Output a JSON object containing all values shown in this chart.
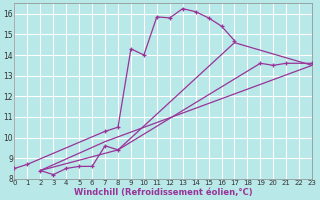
{
  "xlabel": "Windchill (Refroidissement éolien,°C)",
  "bg_color": "#b8e8e8",
  "plot_bg_color": "#b8e8e8",
  "line_color": "#993399",
  "grid_color": "#ffffff",
  "xmin": 0,
  "xmax": 23,
  "ymin": 8,
  "ymax": 16.5,
  "line1_x": [
    0,
    1,
    7,
    8,
    9,
    10,
    11,
    12,
    13,
    14,
    15,
    16,
    17
  ],
  "line1_y": [
    8.5,
    8.7,
    10.3,
    10.5,
    14.3,
    14.0,
    15.85,
    15.8,
    16.25,
    16.1,
    15.8,
    15.4,
    14.7
  ],
  "line2_x": [
    2,
    3,
    4,
    5,
    6,
    7,
    8,
    19,
    20,
    21,
    23
  ],
  "line2_y": [
    8.4,
    8.2,
    8.5,
    8.6,
    8.6,
    9.6,
    9.4,
    13.6,
    13.5,
    13.6,
    13.6
  ],
  "line3_x": [
    2,
    7,
    23
  ],
  "line3_y": [
    8.4,
    9.8,
    13.5
  ],
  "line4_x": [
    2,
    8,
    17,
    23
  ],
  "line4_y": [
    8.4,
    9.4,
    14.6,
    13.5
  ],
  "xticks": [
    0,
    1,
    2,
    3,
    4,
    5,
    6,
    7,
    8,
    9,
    10,
    11,
    12,
    13,
    14,
    15,
    16,
    17,
    18,
    19,
    20,
    21,
    22,
    23
  ],
  "yticks": [
    8,
    9,
    10,
    11,
    12,
    13,
    14,
    15,
    16
  ],
  "xlabel_color": "#993399",
  "xlabel_fontsize": 6.0,
  "tick_labelsize": 5.5
}
